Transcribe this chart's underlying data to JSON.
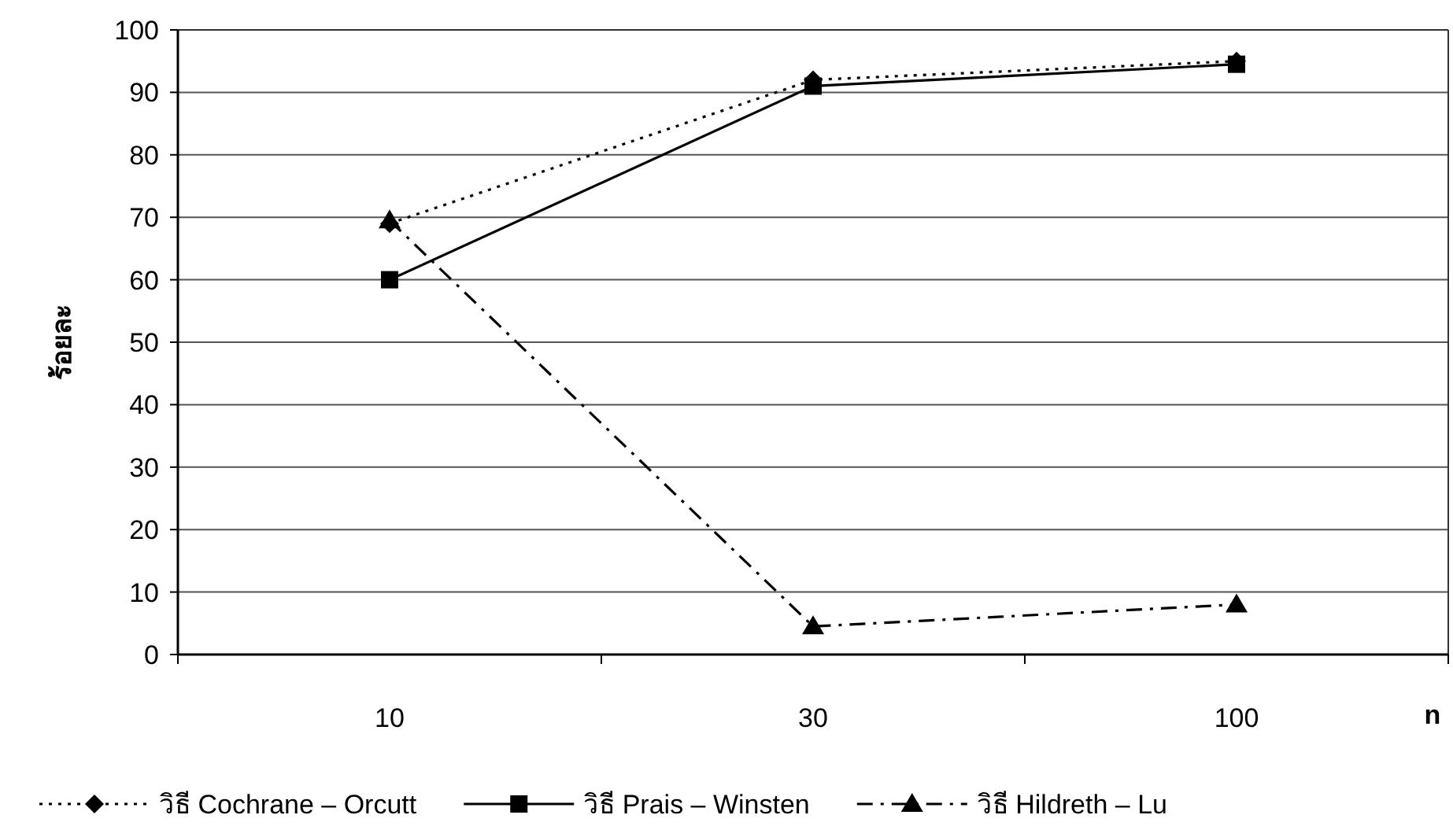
{
  "chart_data": {
    "type": "line",
    "xlabel": "n",
    "ylabel": "ร้อยละ",
    "categories": [
      "10",
      "30",
      "100"
    ],
    "series": [
      {
        "name": "วิธี Cochrane – Orcutt",
        "color": "#000000",
        "values": [
          69,
          92,
          95
        ],
        "marker": "diamond",
        "line_style": "dotted"
      },
      {
        "name": "วิธี Prais – Winsten",
        "color": "#000000",
        "values": [
          60,
          91,
          94.5
        ],
        "marker": "square",
        "line_style": "solid"
      },
      {
        "name": "วิธี Hildreth – Lu",
        "color": "#000000",
        "values": [
          69.5,
          4.5,
          8
        ],
        "marker": "triangle",
        "line_style": "dashdot"
      }
    ],
    "ylim": [
      0,
      100
    ],
    "yticks": [
      0,
      10,
      20,
      30,
      40,
      50,
      60,
      70,
      80,
      90,
      100
    ],
    "grid": "y",
    "legend": "bottom"
  }
}
